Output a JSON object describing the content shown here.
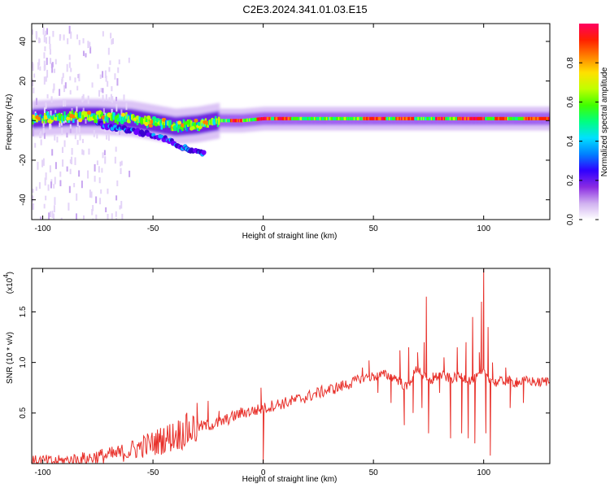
{
  "title": "C2E3.2024.341.01.03.E15",
  "chart_data": [
    {
      "type": "heatmap",
      "xlabel": "Height of straight line (km)",
      "ylabel": "Frequency (Hz)",
      "xlim": [
        -105,
        130
      ],
      "ylim": [
        -50,
        49
      ],
      "xticks": [
        -100,
        -50,
        0,
        50,
        100
      ],
      "xtick_labels": [
        "-100",
        "-50",
        "0",
        "50",
        "100"
      ],
      "yticks": [
        -40,
        -20,
        0,
        20,
        40
      ],
      "ytick_labels": [
        "-40",
        "-20",
        "0",
        "20",
        "40"
      ],
      "colorbar": {
        "label": "Normalized spectral amplitude",
        "range": [
          0,
          1
        ],
        "ticks": [
          0.0,
          0.2,
          0.4,
          0.6,
          0.8
        ],
        "tick_labels": [
          "0.0",
          "0.2",
          "0.4",
          "0.6",
          "0.8"
        ],
        "colormap": [
          "#ffffff",
          "#d0b0f0",
          "#8a2be2",
          "#3000ff",
          "#0080ff",
          "#00e0ff",
          "#00ff80",
          "#40ff00",
          "#c0ff00",
          "#ffe000",
          "#ff8000",
          "#ff2000",
          "#ff0060"
        ]
      },
      "ridge": {
        "center_frequency_hz": [
          [
            -105,
            1
          ],
          [
            -90,
            2
          ],
          [
            -75,
            2
          ],
          [
            -60,
            1
          ],
          [
            -50,
            -1
          ],
          [
            -40,
            -3
          ],
          [
            -30,
            -2
          ],
          [
            -20,
            0
          ],
          [
            -10,
            0
          ],
          [
            0,
            1
          ],
          [
            10,
            1
          ],
          [
            20,
            1
          ],
          [
            40,
            1
          ],
          [
            60,
            1
          ],
          [
            80,
            1
          ],
          [
            100,
            1
          ],
          [
            130,
            1
          ]
        ],
        "lower_branch_hz": [
          [
            -75,
            -2
          ],
          [
            -60,
            -5
          ],
          [
            -45,
            -9
          ],
          [
            -35,
            -14
          ],
          [
            -27,
            -17
          ]
        ],
        "peak_segments_km": [
          [
            -15,
            -10
          ],
          [
            -3,
            3
          ],
          [
            5,
            12
          ],
          [
            45,
            55
          ],
          [
            60,
            68
          ],
          [
            78,
            82
          ],
          [
            88,
            100
          ],
          [
            105,
            110
          ],
          [
            118,
            130
          ]
        ]
      }
    },
    {
      "type": "line",
      "xlabel": "Height of straight line (km)",
      "ylabel": "SNR (10 * v/v)",
      "y_multiplier": "(x10",
      "y_multiplier_exp": "4",
      "y_multiplier_close": ")",
      "xlim": [
        -105,
        130
      ],
      "ylim": [
        0,
        1.93
      ],
      "xticks": [
        -100,
        -50,
        0,
        50,
        100
      ],
      "xtick_labels": [
        "-100",
        "-50",
        "0",
        "50",
        "100"
      ],
      "yticks": [
        0.5,
        1.0,
        1.5
      ],
      "ytick_labels": [
        "0.5",
        "1.0",
        "1.5"
      ],
      "color": "#e8302a",
      "x": [
        -105,
        -100,
        -95,
        -90,
        -85,
        -80,
        -75,
        -70,
        -65,
        -60,
        -55,
        -50,
        -45,
        -40,
        -35,
        -30,
        -25,
        -20,
        -15,
        -10,
        -5,
        0,
        5,
        10,
        15,
        20,
        25,
        30,
        35,
        40,
        45,
        50,
        55,
        60,
        65,
        70,
        75,
        80,
        85,
        90,
        95,
        100,
        105,
        110,
        115,
        120,
        125,
        130
      ],
      "y": [
        0.02,
        0.03,
        0.02,
        0.03,
        0.04,
        0.05,
        0.07,
        0.08,
        0.1,
        0.13,
        0.17,
        0.2,
        0.24,
        0.28,
        0.32,
        0.36,
        0.38,
        0.4,
        0.45,
        0.5,
        0.52,
        0.54,
        0.58,
        0.6,
        0.63,
        0.66,
        0.7,
        0.73,
        0.76,
        0.8,
        0.85,
        0.86,
        0.88,
        0.85,
        0.75,
        0.95,
        0.8,
        0.88,
        0.84,
        0.86,
        0.82,
        0.9,
        0.8,
        0.82,
        0.8,
        0.82,
        0.8,
        0.82
      ],
      "spikes": [
        [
          -45,
          0.35
        ],
        [
          -35,
          0.48
        ],
        [
          -30,
          0.6
        ],
        [
          -25,
          0.62
        ],
        [
          -20,
          0.52
        ],
        [
          0,
          0.01
        ],
        [
          -1,
          0.75
        ],
        [
          45,
          0.95
        ],
        [
          48,
          1.02
        ],
        [
          52,
          0.7
        ],
        [
          55,
          0.9
        ],
        [
          58,
          0.6
        ],
        [
          62,
          1.12
        ],
        [
          64,
          0.38
        ],
        [
          66,
          1.15
        ],
        [
          68,
          0.5
        ],
        [
          70,
          1.1
        ],
        [
          72,
          0.55
        ],
        [
          73,
          1.2
        ],
        [
          74,
          1.65
        ],
        [
          75,
          0.3
        ],
        [
          77,
          0.9
        ],
        [
          80,
          0.7
        ],
        [
          82,
          1.05
        ],
        [
          85,
          0.25
        ],
        [
          88,
          1.15
        ],
        [
          90,
          0.3
        ],
        [
          92,
          1.2
        ],
        [
          93,
          0.25
        ],
        [
          95,
          1.45
        ],
        [
          96,
          0.2
        ],
        [
          98,
          1.1
        ],
        [
          99,
          1.6
        ],
        [
          100,
          1.93
        ],
        [
          101,
          0.3
        ],
        [
          102,
          1.35
        ],
        [
          103,
          0.08
        ],
        [
          104,
          1.0
        ],
        [
          110,
          0.95
        ],
        [
          112,
          0.55
        ],
        [
          115,
          0.85
        ],
        [
          118,
          0.6
        ]
      ]
    }
  ]
}
